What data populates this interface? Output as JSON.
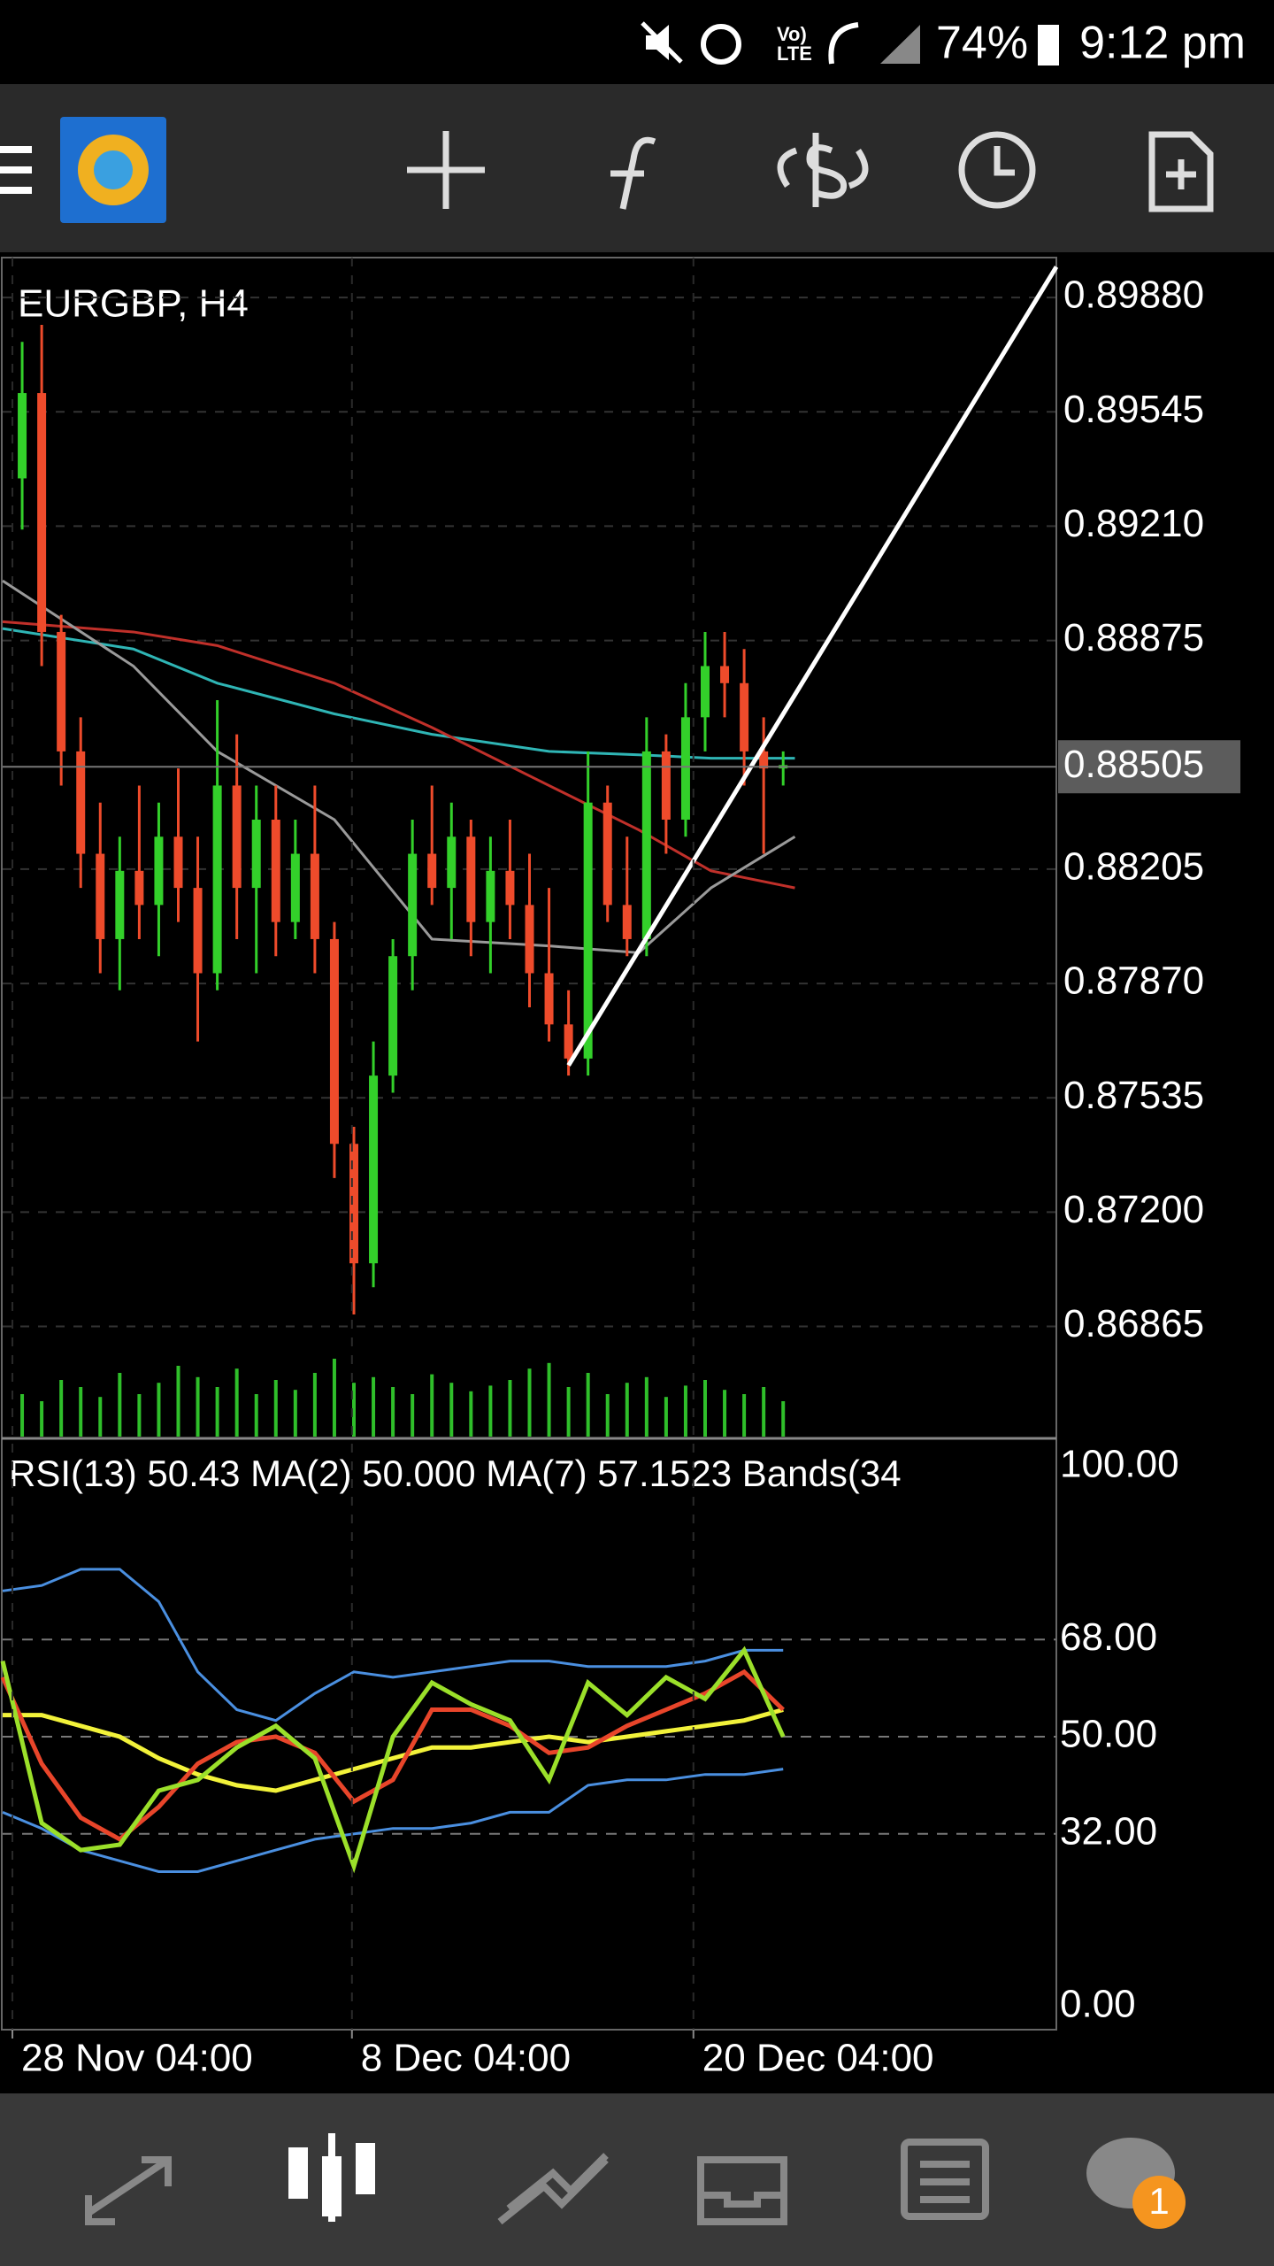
{
  "status_bar": {
    "volte": "Vo)",
    "network": "LTE",
    "battery": "74%",
    "time": "9:12 pm"
  },
  "badge": "1",
  "chart_data": {
    "type": "candlestick",
    "title": "EURGBP, H4",
    "x": [
      1,
      2,
      3,
      4,
      5,
      6,
      7,
      8,
      9,
      10,
      11,
      12,
      13,
      14,
      15,
      16,
      17,
      18,
      19,
      20,
      21,
      22,
      23,
      24,
      25,
      26,
      27,
      28,
      29,
      30,
      31,
      32,
      33,
      34,
      35,
      36,
      37,
      38,
      39,
      40
    ],
    "open": [
      0.8935,
      0.896,
      0.889,
      0.8855,
      0.8825,
      0.88,
      0.882,
      0.881,
      0.883,
      0.8815,
      0.879,
      0.8845,
      0.8815,
      0.8835,
      0.8805,
      0.8825,
      0.88,
      0.874,
      0.8705,
      0.876,
      0.8795,
      0.8825,
      0.8815,
      0.883,
      0.8805,
      0.882,
      0.881,
      0.879,
      0.8775,
      0.8765,
      0.884,
      0.881,
      0.88,
      0.8855,
      0.8835,
      0.8865,
      0.888,
      0.8875,
      0.8855,
      0.885
    ],
    "high": [
      0.8975,
      0.898,
      0.8895,
      0.8865,
      0.884,
      0.883,
      0.8845,
      0.884,
      0.885,
      0.883,
      0.887,
      0.886,
      0.8845,
      0.8845,
      0.8835,
      0.8845,
      0.8805,
      0.8745,
      0.877,
      0.88,
      0.8835,
      0.8845,
      0.884,
      0.8835,
      0.883,
      0.8835,
      0.8825,
      0.8815,
      0.8785,
      0.8855,
      0.8845,
      0.883,
      0.8865,
      0.886,
      0.8875,
      0.889,
      0.889,
      0.8885,
      0.8865,
      0.8855
    ],
    "low": [
      0.892,
      0.888,
      0.8845,
      0.8815,
      0.879,
      0.8785,
      0.88,
      0.8795,
      0.8805,
      0.877,
      0.8785,
      0.88,
      0.879,
      0.8795,
      0.88,
      0.879,
      0.873,
      0.869,
      0.8698,
      0.8755,
      0.8785,
      0.881,
      0.88,
      0.8795,
      0.879,
      0.88,
      0.878,
      0.877,
      0.876,
      0.876,
      0.8805,
      0.8795,
      0.8795,
      0.8825,
      0.883,
      0.8855,
      0.8865,
      0.8845,
      0.8825,
      0.8845
    ],
    "close": [
      0.896,
      0.889,
      0.8855,
      0.8825,
      0.88,
      0.882,
      0.881,
      0.883,
      0.8815,
      0.879,
      0.8845,
      0.8815,
      0.8835,
      0.8805,
      0.8825,
      0.88,
      0.874,
      0.8705,
      0.876,
      0.8795,
      0.8825,
      0.8815,
      0.883,
      0.8805,
      0.882,
      0.881,
      0.879,
      0.8775,
      0.8765,
      0.884,
      0.881,
      0.88,
      0.8855,
      0.8835,
      0.8865,
      0.888,
      0.8875,
      0.8855,
      0.885,
      0.8851
    ],
    "volume": [
      30,
      25,
      40,
      35,
      28,
      45,
      30,
      38,
      50,
      42,
      35,
      48,
      30,
      40,
      33,
      45,
      55,
      38,
      42,
      35,
      30,
      44,
      38,
      32,
      36,
      40,
      48,
      52,
      35,
      45,
      30,
      38,
      42,
      28,
      36,
      40,
      33,
      30,
      35,
      25
    ],
    "colors": {
      "up": "#33d02a",
      "down": "#ee4b2b",
      "volume": "#2fbf2a"
    },
    "xlim": [
      0,
      54
    ],
    "ylim": [
      0.86537,
      0.89997
    ],
    "yticks": [
      {
        "value": 0.8988,
        "label": "0.89880"
      },
      0.89545,
      {
        "value": 0.8921,
        "label": "0.89210"
      },
      0.88875,
      0.88205,
      {
        "value": 0.8787,
        "label": "0.87870"
      },
      0.87535,
      {
        "value": 0.872,
        "label": "0.87200"
      },
      0.86865
    ],
    "xticks": [
      {
        "value": 0.5,
        "label": "28 Nov 04:00"
      },
      {
        "value": 17.9,
        "label": "8 Dec 04:00"
      },
      {
        "value": 35.4,
        "label": "20 Dec 04:00"
      }
    ],
    "grid": true,
    "current_price": 0.88505,
    "overlays": {
      "x": [
        0,
        6.7,
        11,
        17,
        22,
        28,
        32.6,
        36.3,
        40.6
      ],
      "series": [
        {
          "color": "#2fb5b5",
          "values": [
            0.8891,
            0.8885,
            0.8875,
            0.8866,
            0.886,
            0.8855,
            0.8854,
            0.8853,
            0.8853
          ]
        },
        {
          "color": "#c0302a",
          "values": [
            0.8893,
            0.889,
            0.8886,
            0.8875,
            0.8862,
            0.8845,
            0.8832,
            0.882,
            0.8815
          ]
        },
        {
          "color": "#9a9a9a",
          "values": [
            0.8905,
            0.888,
            0.8855,
            0.8835,
            0.88,
            0.8798,
            0.8796,
            0.8815,
            0.883
          ]
        }
      ]
    },
    "trendline": {
      "color": "#ffffff",
      "x": [
        29,
        54
      ],
      "values": [
        0.8763,
        0.8997
      ]
    },
    "indicator": {
      "type": "line",
      "label": "RSI(13) 50.43 MA(2) 50.000 MA(7) 57.1523 Bands(34",
      "x": [
        0,
        2,
        4,
        6,
        8,
        10,
        12,
        14,
        16,
        18,
        20,
        22,
        24,
        26,
        28,
        30,
        32,
        34,
        36,
        38,
        40
      ],
      "ylim": [
        0,
        100
      ],
      "yticks": [
        {
          "value": 100,
          "label": "100.00"
        },
        {
          "value": 68,
          "label": "68.00"
        },
        {
          "value": 50,
          "label": "50.00"
        },
        {
          "value": 32,
          "label": "32.00"
        },
        {
          "value": 0,
          "label": "0.00"
        }
      ],
      "series": [
        {
          "color": "#4a8fe0",
          "values": [
            77,
            78,
            81,
            81,
            75,
            62,
            55,
            53,
            58,
            62,
            61,
            62,
            63,
            64,
            64,
            63,
            63,
            63,
            64,
            66,
            66
          ]
        },
        {
          "color": "#4a8fe0",
          "values": [
            36,
            33,
            29,
            27,
            25,
            25,
            27,
            29,
            31,
            32,
            33,
            33,
            34,
            36,
            36,
            41,
            42,
            42,
            43,
            43,
            44
          ]
        },
        {
          "color": "#f2f23a",
          "values": [
            54,
            54,
            52,
            50,
            46,
            43,
            41,
            40,
            42,
            44,
            46,
            48,
            48,
            49,
            50,
            49,
            50,
            51,
            52,
            53,
            55
          ]
        },
        {
          "color": "#e8452a",
          "values": [
            61,
            45,
            35,
            31,
            37,
            45,
            49,
            50,
            47,
            38,
            42,
            55,
            55,
            52,
            47,
            48,
            52,
            55,
            58,
            62,
            55
          ]
        },
        {
          "color": "#9be02a",
          "values": [
            64,
            34,
            29,
            30,
            40,
            42,
            48,
            52,
            46,
            26,
            50,
            60,
            56,
            53,
            42,
            60,
            54,
            61,
            57,
            66,
            50
          ]
        }
      ]
    }
  }
}
